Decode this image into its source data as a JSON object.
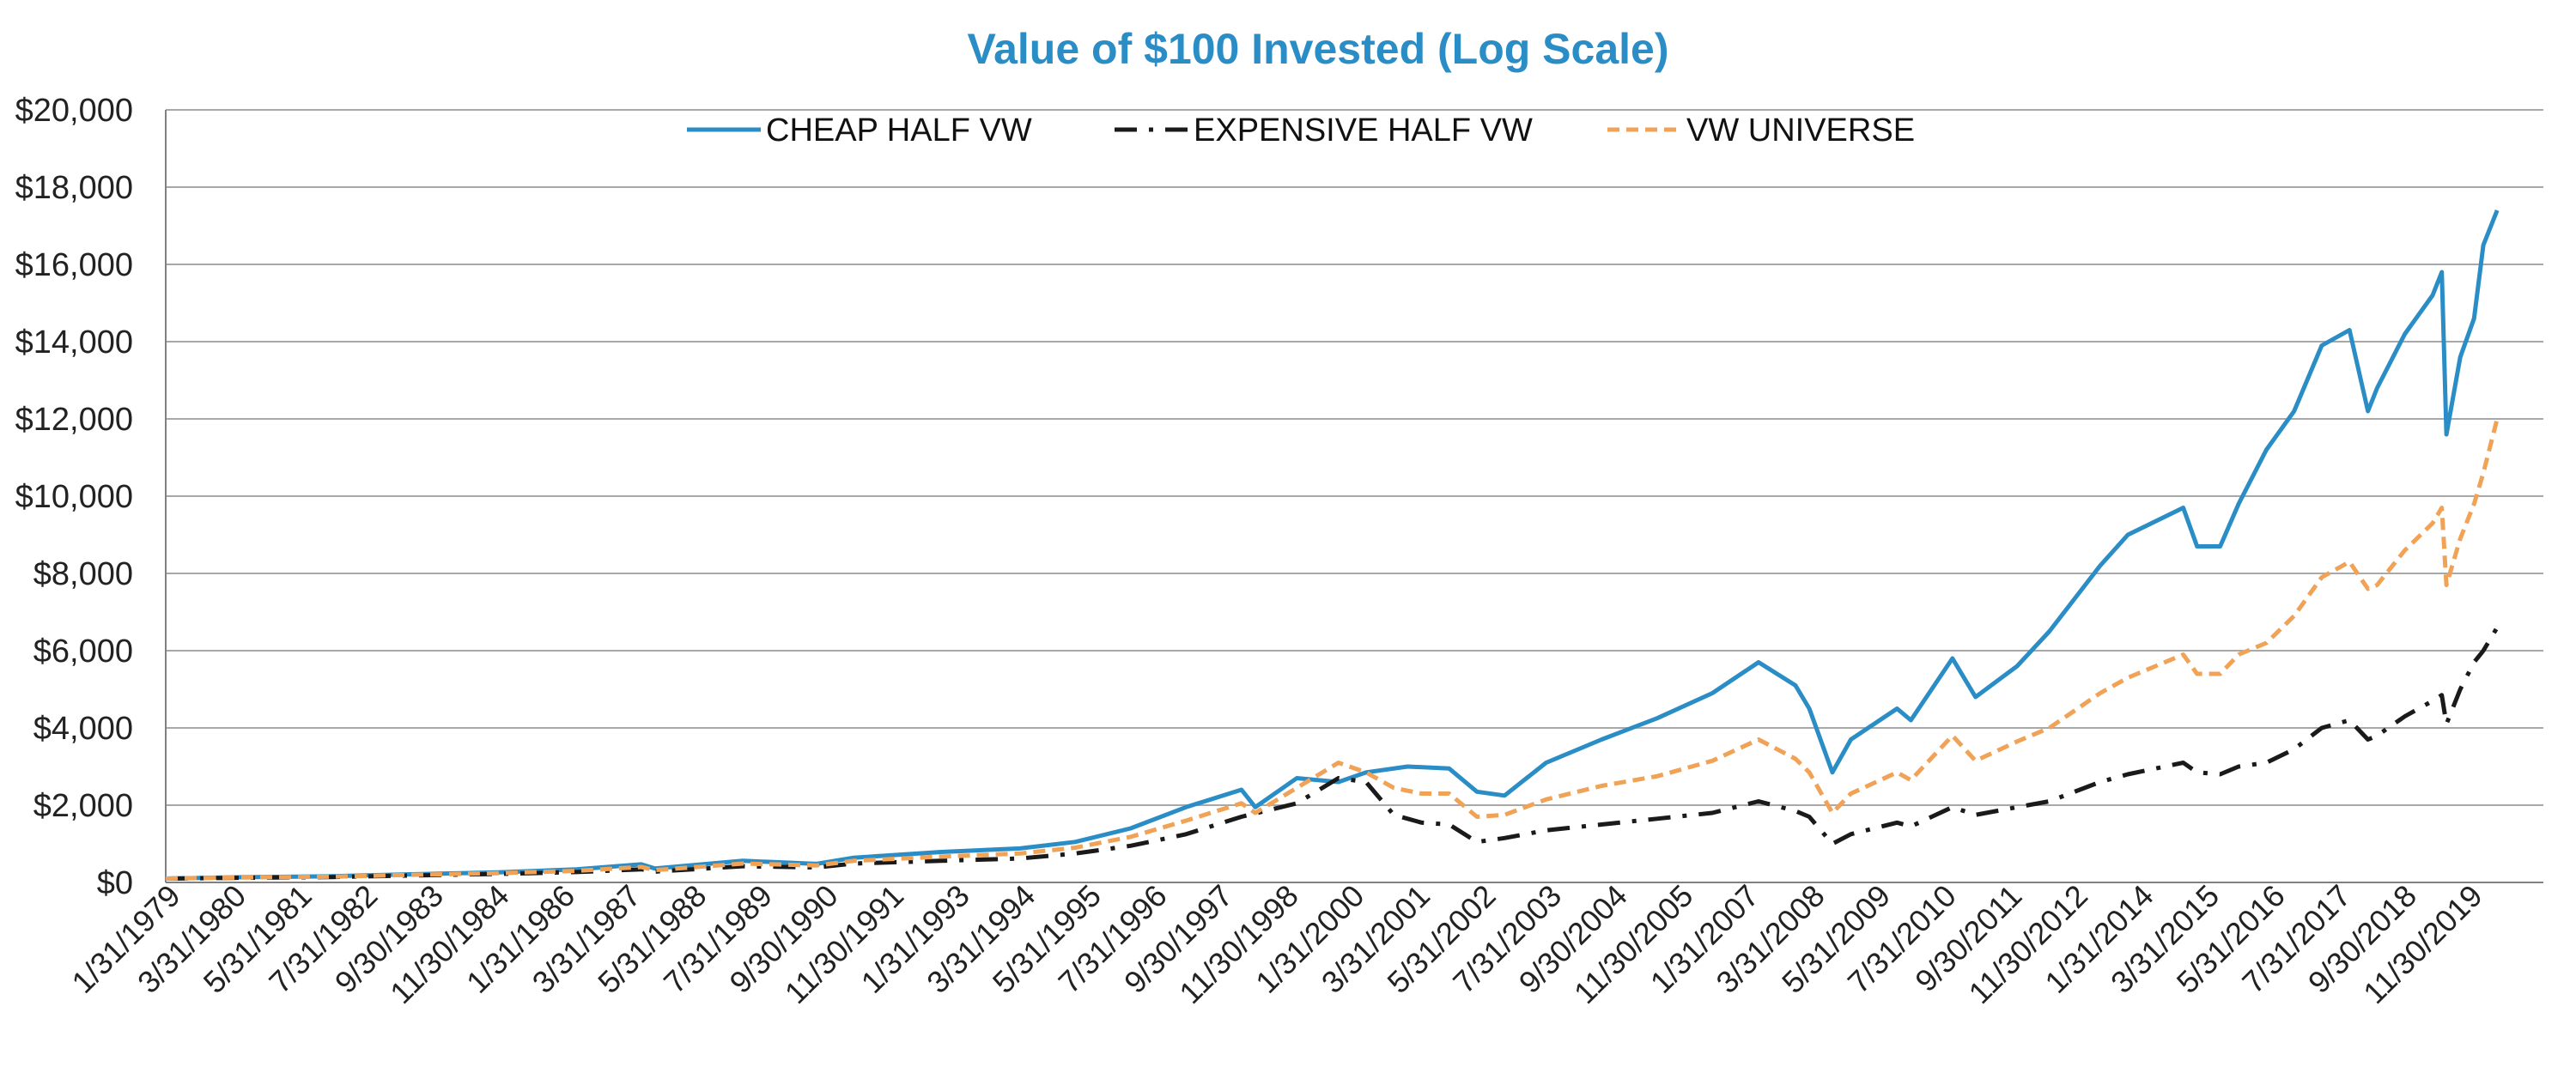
{
  "chart_data": {
    "type": "line",
    "title": "Value of $100 Invested (Log Scale)",
    "xlabel": "",
    "ylabel": "",
    "ylim": [
      0,
      20000
    ],
    "ytick_values": [
      0,
      2000,
      4000,
      6000,
      8000,
      10000,
      12000,
      14000,
      16000,
      18000,
      20000
    ],
    "ytick_labels": [
      "$0",
      "$2,000",
      "$4,000",
      "$6,000",
      "$8,000",
      "$10,000",
      "$12,000",
      "$14,000",
      "$16,000",
      "$18,000",
      "$20,000"
    ],
    "xlim": [
      "1979-01",
      "2021-12"
    ],
    "x_tick_labels": [
      "1/31/1979",
      "3/31/1980",
      "5/31/1981",
      "7/31/1982",
      "9/30/1983",
      "11/30/1984",
      "1/31/1986",
      "3/31/1987",
      "5/31/1988",
      "7/31/1989",
      "9/30/1990",
      "11/30/1991",
      "1/31/1993",
      "3/31/1994",
      "5/31/1995",
      "7/31/1996",
      "9/30/1997",
      "11/30/1998",
      "1/31/2000",
      "3/31/2001",
      "5/31/2002",
      "7/31/2003",
      "9/30/2004",
      "11/30/2005",
      "1/31/2007",
      "3/31/2008",
      "5/31/2009",
      "7/31/2010",
      "9/30/2011",
      "11/30/2012",
      "1/31/2014",
      "3/31/2015",
      "5/31/2016",
      "7/31/2017",
      "9/30/2018",
      "11/30/2019"
    ],
    "grid": true,
    "legend_position": "top-center",
    "series": [
      {
        "name": "CHEAP HALF VW",
        "color": "#2a8dc5",
        "style": "solid",
        "points": [
          [
            "1979-01",
            100
          ],
          [
            "1980-06",
            135
          ],
          [
            "1982-01",
            160
          ],
          [
            "1983-06",
            210
          ],
          [
            "1985-01",
            260
          ],
          [
            "1986-06",
            340
          ],
          [
            "1987-08",
            470
          ],
          [
            "1987-11",
            360
          ],
          [
            "1989-06",
            560
          ],
          [
            "1990-10",
            480
          ],
          [
            "1991-06",
            640
          ],
          [
            "1993-01",
            790
          ],
          [
            "1994-06",
            880
          ],
          [
            "1995-06",
            1050
          ],
          [
            "1996-06",
            1400
          ],
          [
            "1997-06",
            1950
          ],
          [
            "1998-06",
            2400
          ],
          [
            "1998-09",
            1950
          ],
          [
            "1999-06",
            2700
          ],
          [
            "2000-03",
            2600
          ],
          [
            "2000-09",
            2850
          ],
          [
            "2001-06",
            3000
          ],
          [
            "2002-03",
            2950
          ],
          [
            "2002-09",
            2350
          ],
          [
            "2003-03",
            2250
          ],
          [
            "2003-12",
            3100
          ],
          [
            "2004-12",
            3700
          ],
          [
            "2005-12",
            4250
          ],
          [
            "2006-12",
            4900
          ],
          [
            "2007-10",
            5700
          ],
          [
            "2008-06",
            5100
          ],
          [
            "2008-09",
            4500
          ],
          [
            "2009-02",
            2850
          ],
          [
            "2009-06",
            3700
          ],
          [
            "2010-04",
            4500
          ],
          [
            "2010-07",
            4200
          ],
          [
            "2011-04",
            5800
          ],
          [
            "2011-09",
            4800
          ],
          [
            "2012-06",
            5600
          ],
          [
            "2013-01",
            6500
          ],
          [
            "2013-12",
            8200
          ],
          [
            "2014-06",
            9000
          ],
          [
            "2015-06",
            9700
          ],
          [
            "2015-09",
            8700
          ],
          [
            "2016-02",
            8700
          ],
          [
            "2016-06",
            9800
          ],
          [
            "2016-12",
            11200
          ],
          [
            "2017-06",
            12200
          ],
          [
            "2017-12",
            13900
          ],
          [
            "2018-06",
            14300
          ],
          [
            "2018-10",
            12200
          ],
          [
            "2018-12",
            12800
          ],
          [
            "2019-06",
            14200
          ],
          [
            "2019-12",
            15200
          ],
          [
            "2020-02",
            15800
          ],
          [
            "2020-03",
            11600
          ],
          [
            "2020-06",
            13600
          ],
          [
            "2020-09",
            14600
          ],
          [
            "2020-11",
            16500
          ],
          [
            "2021-02",
            17400
          ]
        ]
      },
      {
        "name": "EXPENSIVE HALF VW",
        "color": "#1a1a1a",
        "style": "dashdot",
        "points": [
          [
            "1979-01",
            100
          ],
          [
            "1980-06",
            120
          ],
          [
            "1982-01",
            140
          ],
          [
            "1983-06",
            180
          ],
          [
            "1985-01",
            220
          ],
          [
            "1986-06",
            270
          ],
          [
            "1987-08",
            340
          ],
          [
            "1987-11",
            280
          ],
          [
            "1989-06",
            420
          ],
          [
            "1990-10",
            390
          ],
          [
            "1991-06",
            490
          ],
          [
            "1993-01",
            560
          ],
          [
            "1994-06",
            620
          ],
          [
            "1995-06",
            750
          ],
          [
            "1996-06",
            950
          ],
          [
            "1997-06",
            1250
          ],
          [
            "1998-06",
            1700
          ],
          [
            "1999-06",
            2050
          ],
          [
            "2000-03",
            2700
          ],
          [
            "2000-09",
            2600
          ],
          [
            "2001-03",
            1750
          ],
          [
            "2001-09",
            1550
          ],
          [
            "2002-03",
            1500
          ],
          [
            "2002-09",
            1050
          ],
          [
            "2003-03",
            1150
          ],
          [
            "2003-12",
            1350
          ],
          [
            "2004-12",
            1500
          ],
          [
            "2005-12",
            1650
          ],
          [
            "2006-12",
            1800
          ],
          [
            "2007-10",
            2100
          ],
          [
            "2008-06",
            1850
          ],
          [
            "2008-09",
            1700
          ],
          [
            "2009-02",
            1000
          ],
          [
            "2009-06",
            1250
          ],
          [
            "2010-04",
            1550
          ],
          [
            "2010-07",
            1450
          ],
          [
            "2011-04",
            1950
          ],
          [
            "2011-09",
            1750
          ],
          [
            "2012-06",
            1950
          ],
          [
            "2013-01",
            2100
          ],
          [
            "2013-12",
            2600
          ],
          [
            "2014-06",
            2800
          ],
          [
            "2015-06",
            3100
          ],
          [
            "2015-09",
            2850
          ],
          [
            "2016-02",
            2800
          ],
          [
            "2016-06",
            3000
          ],
          [
            "2016-12",
            3100
          ],
          [
            "2017-06",
            3450
          ],
          [
            "2017-12",
            4000
          ],
          [
            "2018-06",
            4200
          ],
          [
            "2018-10",
            3700
          ],
          [
            "2018-12",
            3800
          ],
          [
            "2019-06",
            4300
          ],
          [
            "2019-12",
            4700
          ],
          [
            "2020-02",
            4850
          ],
          [
            "2020-03",
            4100
          ],
          [
            "2020-06",
            5000
          ],
          [
            "2020-09",
            5700
          ],
          [
            "2020-11",
            6000
          ],
          [
            "2021-02",
            6600
          ]
        ]
      },
      {
        "name": "VW UNIVERSE",
        "color": "#f0a257",
        "style": "dashed",
        "points": [
          [
            "1979-01",
            100
          ],
          [
            "1980-06",
            128
          ],
          [
            "1982-01",
            150
          ],
          [
            "1983-06",
            195
          ],
          [
            "1985-01",
            240
          ],
          [
            "1986-06",
            300
          ],
          [
            "1987-08",
            400
          ],
          [
            "1987-11",
            320
          ],
          [
            "1989-06",
            490
          ],
          [
            "1990-10",
            440
          ],
          [
            "1991-06",
            560
          ],
          [
            "1993-01",
            670
          ],
          [
            "1994-06",
            750
          ],
          [
            "1995-06",
            900
          ],
          [
            "1996-06",
            1180
          ],
          [
            "1997-06",
            1600
          ],
          [
            "1998-06",
            2050
          ],
          [
            "1998-09",
            1800
          ],
          [
            "1999-06",
            2450
          ],
          [
            "2000-03",
            3100
          ],
          [
            "2000-09",
            2850
          ],
          [
            "2001-03",
            2450
          ],
          [
            "2001-09",
            2300
          ],
          [
            "2002-03",
            2300
          ],
          [
            "2002-09",
            1700
          ],
          [
            "2003-03",
            1750
          ],
          [
            "2003-12",
            2150
          ],
          [
            "2004-12",
            2500
          ],
          [
            "2005-12",
            2750
          ],
          [
            "2006-12",
            3150
          ],
          [
            "2007-10",
            3700
          ],
          [
            "2008-06",
            3200
          ],
          [
            "2008-09",
            2850
          ],
          [
            "2009-02",
            1800
          ],
          [
            "2009-06",
            2300
          ],
          [
            "2010-04",
            2850
          ],
          [
            "2010-07",
            2650
          ],
          [
            "2011-04",
            3800
          ],
          [
            "2011-09",
            3150
          ],
          [
            "2012-06",
            3650
          ],
          [
            "2013-01",
            4000
          ],
          [
            "2013-12",
            4900
          ],
          [
            "2014-06",
            5300
          ],
          [
            "2015-06",
            5900
          ],
          [
            "2015-09",
            5400
          ],
          [
            "2016-02",
            5400
          ],
          [
            "2016-06",
            5900
          ],
          [
            "2016-12",
            6200
          ],
          [
            "2017-06",
            6900
          ],
          [
            "2017-12",
            7900
          ],
          [
            "2018-06",
            8300
          ],
          [
            "2018-10",
            7600
          ],
          [
            "2018-12",
            7700
          ],
          [
            "2019-06",
            8600
          ],
          [
            "2019-12",
            9300
          ],
          [
            "2020-02",
            9700
          ],
          [
            "2020-03",
            7700
          ],
          [
            "2020-06",
            8900
          ],
          [
            "2020-09",
            9800
          ],
          [
            "2020-11",
            10600
          ],
          [
            "2021-02",
            12000
          ]
        ]
      }
    ]
  }
}
